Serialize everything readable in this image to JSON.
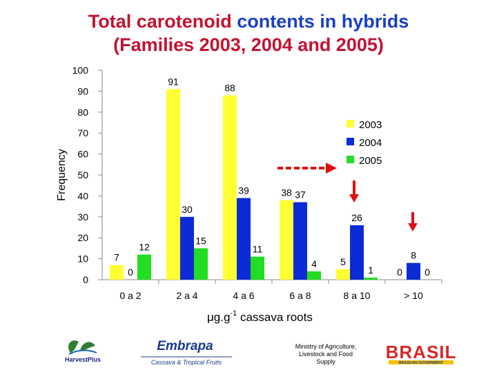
{
  "title": {
    "part1": "Total carotenoid",
    "part2": "contents in hybrids",
    "line2": "(Families 2003, 2004 and 2005)"
  },
  "chart_data": {
    "type": "bar",
    "categories": [
      "0 a 2",
      "2 a 4",
      "4 a 6",
      "6 a 8",
      "8 a 10",
      "> 10"
    ],
    "series": [
      {
        "name": "2003",
        "color": "#ffff33",
        "values": [
          7,
          91,
          88,
          38,
          5,
          0
        ]
      },
      {
        "name": "2004",
        "color": "#0b2bd6",
        "values": [
          0,
          30,
          39,
          37,
          26,
          8
        ]
      },
      {
        "name": "2005",
        "color": "#22dd22",
        "values": [
          12,
          15,
          11,
          4,
          1,
          0
        ]
      }
    ],
    "ylabel": "Frequency",
    "xlabel_main": "μg.g",
    "xlabel_sup": "-1",
    "xlabel_rest": " cassava roots",
    "ylim": [
      0,
      100
    ],
    "yticks": [
      0,
      10,
      20,
      30,
      40,
      50,
      60,
      70,
      80,
      90,
      100
    ],
    "legend_position": "right",
    "grid": false,
    "annotations": [
      "dashed-arrow-to-legend-2005",
      "arrow-down-8a10",
      "arrow-down-gt10"
    ]
  },
  "footer": {
    "ministry": [
      "Ministry of Agriculture,",
      "Livestock and Food",
      "Supply"
    ],
    "logo1_text": "HarvestPlus",
    "logo2_text": "Embrapa",
    "logo2_sub": "Cassava & Tropical Fruits",
    "logo3_text": "BRASIL",
    "logo3_sub": "BRAZILIAN GOVERNMENT"
  }
}
